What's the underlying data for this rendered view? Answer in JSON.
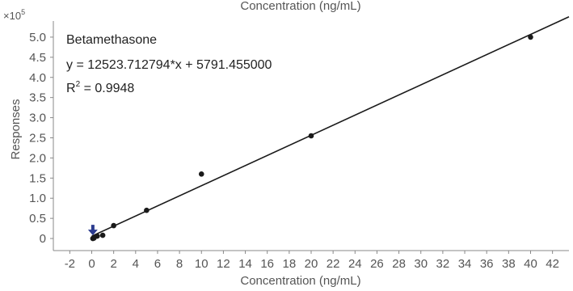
{
  "chart_data": {
    "type": "scatter",
    "title": "Betamethasone",
    "top_axis_label": "Concentration (ng/mL)",
    "xlabel": "Concentration (ng/mL)",
    "ylabel": "Responses",
    "y_multiplier_base": "×10",
    "y_multiplier_exp": "5",
    "equation": "y = 12523.712794*x  + 5791.455000",
    "r2_prefix": "R",
    "r2_sup": "2",
    "r2_value": " = 0.9948",
    "xlim": [
      -3.5,
      43.5
    ],
    "ylim": [
      -0.3,
      5.4
    ],
    "x_ticks": [
      -2,
      0,
      2,
      4,
      6,
      8,
      10,
      12,
      14,
      16,
      18,
      20,
      22,
      24,
      26,
      28,
      30,
      32,
      34,
      36,
      38,
      40,
      42
    ],
    "y_ticks": [
      0,
      0.5,
      1.0,
      1.5,
      2.0,
      2.5,
      3.0,
      3.5,
      4.0,
      4.5,
      5.0
    ],
    "y_tick_labels": [
      "0",
      "0.5",
      "1.0",
      "1.5",
      "2.0",
      "2.5",
      "3.0",
      "3.5",
      "4.0",
      "4.5",
      "5.0"
    ],
    "series": [
      {
        "x": [
          0.1,
          0.2,
          0.5,
          1.0,
          2.0,
          5.0,
          10.0,
          20.0,
          40.0
        ],
        "y": [
          0.0,
          0.01,
          0.06,
          0.08,
          0.32,
          0.7,
          1.6,
          2.55,
          5.0
        ]
      }
    ],
    "fit_line": {
      "slope": 12523.712794,
      "intercept": 5791.455,
      "x_range": [
        0,
        43.5
      ]
    },
    "marker_arrow": {
      "x": 0.1,
      "y": 0.18
    },
    "grid": false,
    "colors": {
      "points": "#1a1a1a",
      "line": "#1a1a1a",
      "arrow": "#2b3b8f",
      "text": "#555555",
      "axis": "#888888"
    }
  }
}
